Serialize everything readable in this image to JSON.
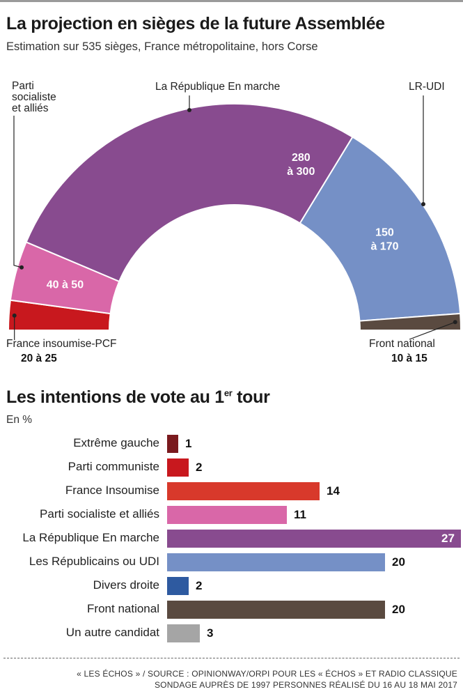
{
  "header": {
    "title": "La projection en sièges de la future Assemblée",
    "subtitle": "Estimation sur 535 sièges, France métropolitaine, hors Corse"
  },
  "chart_data": [
    {
      "type": "hemicycle",
      "title": "La projection en sièges de la future Assemblée",
      "subtitle": "Estimation sur 535 sièges, France métropolitaine, hors Corse",
      "total_seats": 535,
      "segments": [
        {
          "name": "France insoumise-PCF",
          "range": "20 à 25",
          "min": 20,
          "max": 25,
          "color": "#c8181e"
        },
        {
          "name": "Parti socialiste et alliés",
          "range": "40 à 50",
          "min": 40,
          "max": 50,
          "color": "#d967a8"
        },
        {
          "name": "La République En marche",
          "range": "280 à 300",
          "min": 280,
          "max": 300,
          "color": "#884b8f"
        },
        {
          "name": "LR-UDI",
          "range": "150 à 170",
          "min": 150,
          "max": 170,
          "color": "#7590c6"
        },
        {
          "name": "Front national",
          "range": "10 à 15",
          "min": 10,
          "max": 15,
          "color": "#5a4a40"
        }
      ]
    },
    {
      "type": "bar",
      "title": "Les intentions de vote au 1er tour",
      "unit": "En %",
      "categories": [
        "Extrême gauche",
        "Parti communiste",
        "France Insoumise",
        "Parti socialiste et alliés",
        "La République En marche",
        "Les Républicains ou UDI",
        "Divers droite",
        "Front national",
        "Un autre candidat"
      ],
      "values": [
        1,
        2,
        14,
        11,
        27,
        20,
        2,
        20,
        3
      ],
      "colors": [
        "#7a1a1e",
        "#c8181e",
        "#d8392b",
        "#d967a8",
        "#884b8f",
        "#7590c6",
        "#2e5aa0",
        "#5a4a40",
        "#a5a5a5"
      ]
    }
  ],
  "hemicycle_labels": {
    "fi_name": "France insoumise-PCF",
    "fi_value": "20 à 25",
    "ps_line1": "Parti",
    "ps_line2": "socialiste",
    "ps_line3": "et alliés",
    "ps_value": "40 à 50",
    "rem_name": "La République En marche",
    "rem_value1": "280",
    "rem_value2": "à 300",
    "lr_name": "LR-UDI",
    "lr_value1": "150",
    "lr_value2": "à 170",
    "fn_name": "Front national",
    "fn_value": "10 à 15"
  },
  "section2": {
    "title_main": "Les intentions de vote au 1",
    "title_sup": "er",
    "title_end": " tour",
    "unit": "En %"
  },
  "footer": {
    "line1": "« LES ÉCHOS » / SOURCE : OPINIONWAY/ORPI POUR LES « ÉCHOS » ET RADIO CLASSIQUE",
    "line2": "SONDAGE AUPRÈS DE 1997 PERSONNES RÉALISÉ DU 16 AU 18 MAI 2017"
  }
}
